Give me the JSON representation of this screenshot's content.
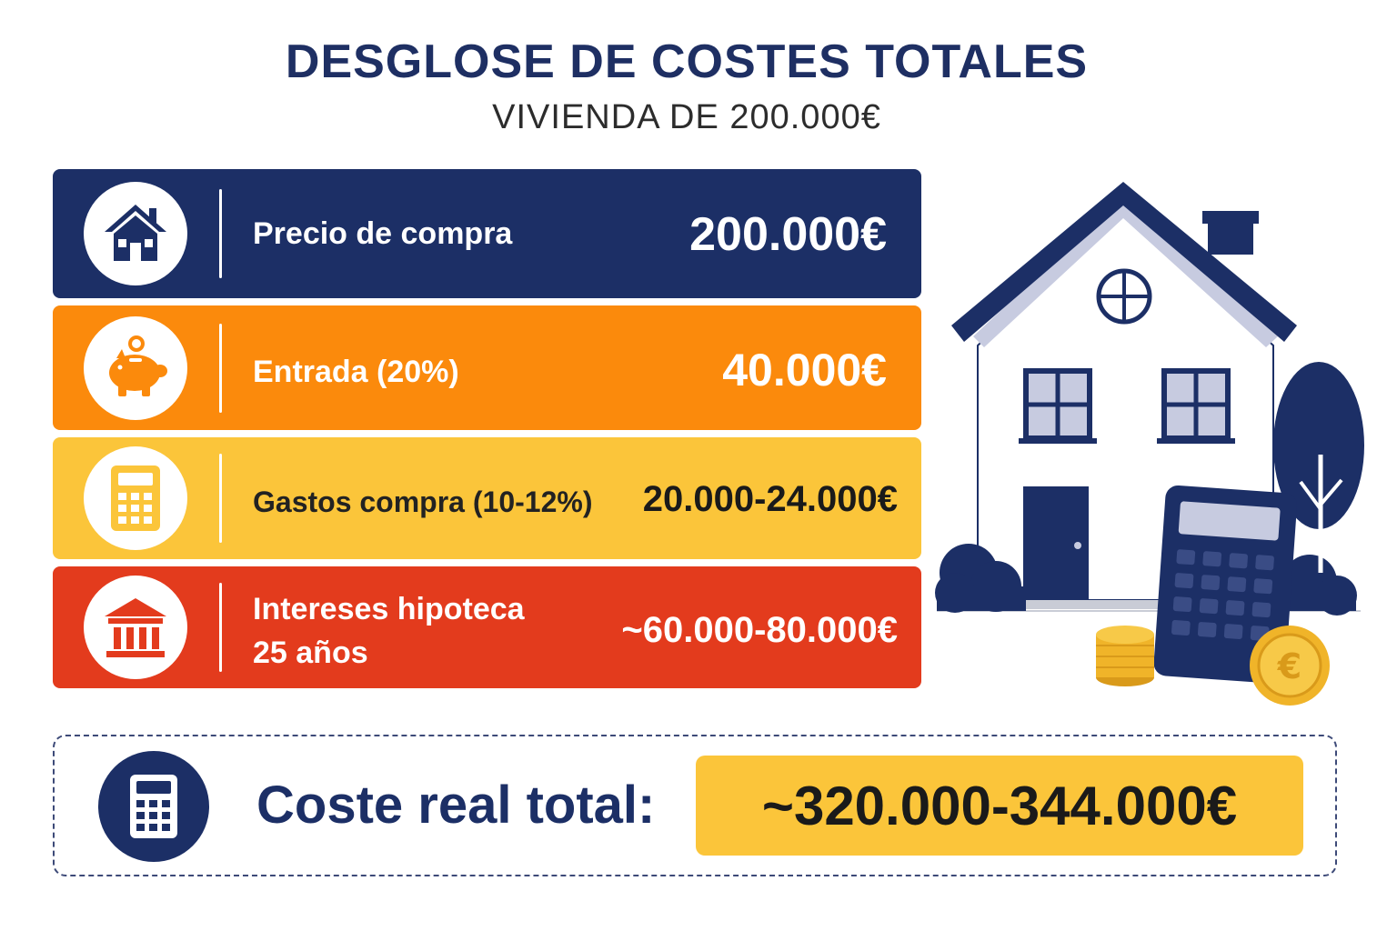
{
  "header": {
    "title": "DESGLOSE DE COSTES TOTALES",
    "subtitle": "VIVIENDA DE 200.000€"
  },
  "rows": [
    {
      "label": "Precio de compra",
      "value": "200.000€",
      "icon": "house-icon",
      "color": "#1c2f66"
    },
    {
      "label": "Entrada (20%)",
      "value": "40.000€",
      "icon": "piggy-bank-icon",
      "color": "#fb8a0c"
    },
    {
      "label": "Gastos compra (10-12%)",
      "value": "20.000-24.000€",
      "icon": "calculator-icon",
      "color": "#fbc53a"
    },
    {
      "label_line1": "Intereses hipoteca",
      "label_line2": "25 años",
      "value": "~60.000-80.000€",
      "icon": "bank-icon",
      "color": "#e33b1d"
    }
  ],
  "total": {
    "label": "Coste real total:",
    "value": "~320.000-344.000€",
    "icon": "calculator-icon"
  },
  "colors": {
    "navy": "#1c2f66",
    "orange": "#fb8a0c",
    "yellow": "#fbc53a",
    "red": "#e33b1d"
  }
}
